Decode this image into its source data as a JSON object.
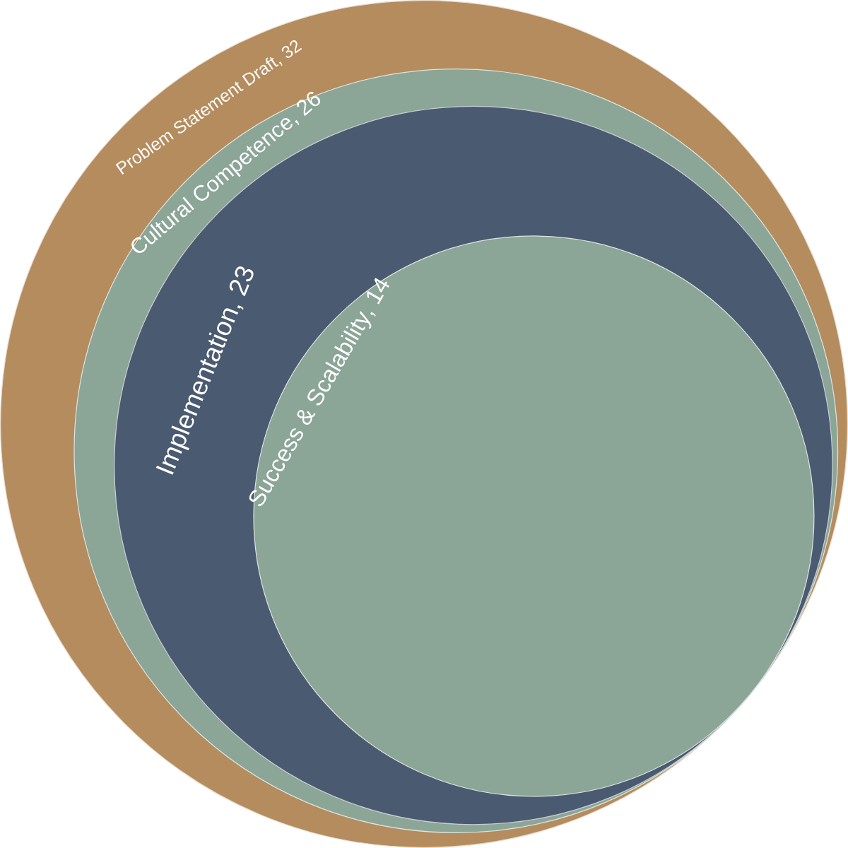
{
  "chart_data": {
    "type": "other",
    "categories": [
      "Problem Statement Draft",
      "Cultural Competence",
      "Implementation",
      "Success & Scalability"
    ],
    "values": [
      32,
      26,
      23,
      14
    ],
    "colors": [
      "#b48c5e",
      "#8ba597",
      "#4a5a70",
      "#8ba597"
    ],
    "value_labels": [
      ", 32",
      ", 26",
      ", 23",
      ", 14"
    ]
  }
}
